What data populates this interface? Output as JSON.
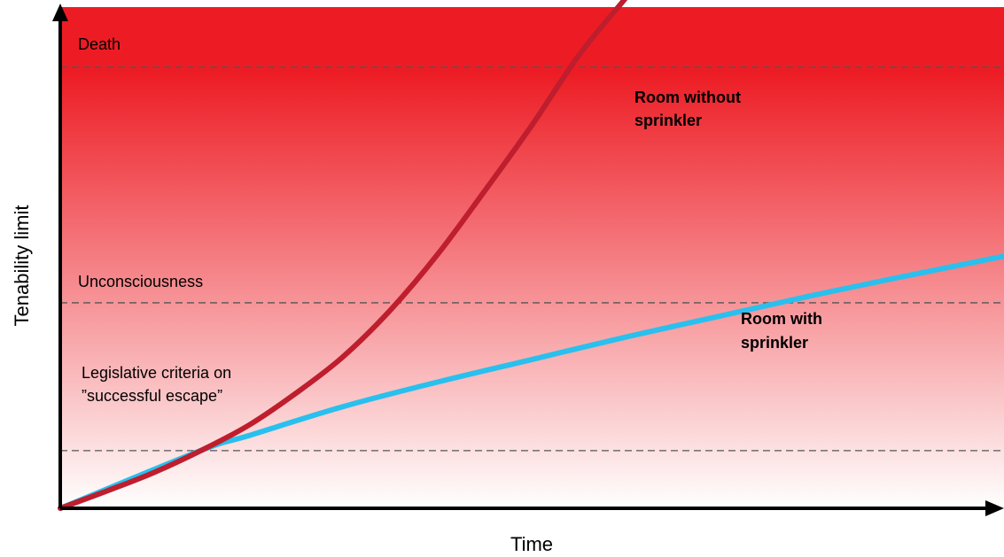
{
  "chart_data": {
    "type": "line",
    "xlabel": "Time",
    "ylabel": "Tenability limit",
    "xlim": [
      0,
      100
    ],
    "ylim": [
      0,
      100
    ],
    "grid": false,
    "background_gradient": {
      "top": "#ed1c24",
      "bottom": "#ffffff"
    },
    "thresholds": [
      {
        "label": "Death",
        "value": 88
      },
      {
        "label": "Unconsciousness",
        "value": 41
      },
      {
        "label": "Legislative criteria on",
        "label_line2": "”successful escape”",
        "value": 11.5
      }
    ],
    "series": [
      {
        "name": "Room without sprinkler",
        "name_line1": "Room without",
        "name_line2": "sprinkler",
        "color": "#be1e2d",
        "x": [
          0,
          5,
          10,
          15,
          20,
          25,
          30,
          35,
          40,
          45,
          50,
          55,
          60,
          62.5
        ],
        "y": [
          0,
          3.5,
          7.2,
          11.6,
          16.6,
          23,
          30.3,
          39.6,
          50.7,
          63.4,
          76.5,
          90.5,
          102,
          108
        ]
      },
      {
        "name": "Room with sprinkler",
        "name_line1": "Room with",
        "name_line2": "sprinkler",
        "color": "#29c0ee",
        "x": [
          0,
          15,
          20,
          30,
          40,
          50,
          60,
          70,
          80,
          90,
          100
        ],
        "y": [
          0,
          11.6,
          14.5,
          20.3,
          25.2,
          29.7,
          34.2,
          38.4,
          42.6,
          46.5,
          50.3
        ]
      }
    ]
  }
}
